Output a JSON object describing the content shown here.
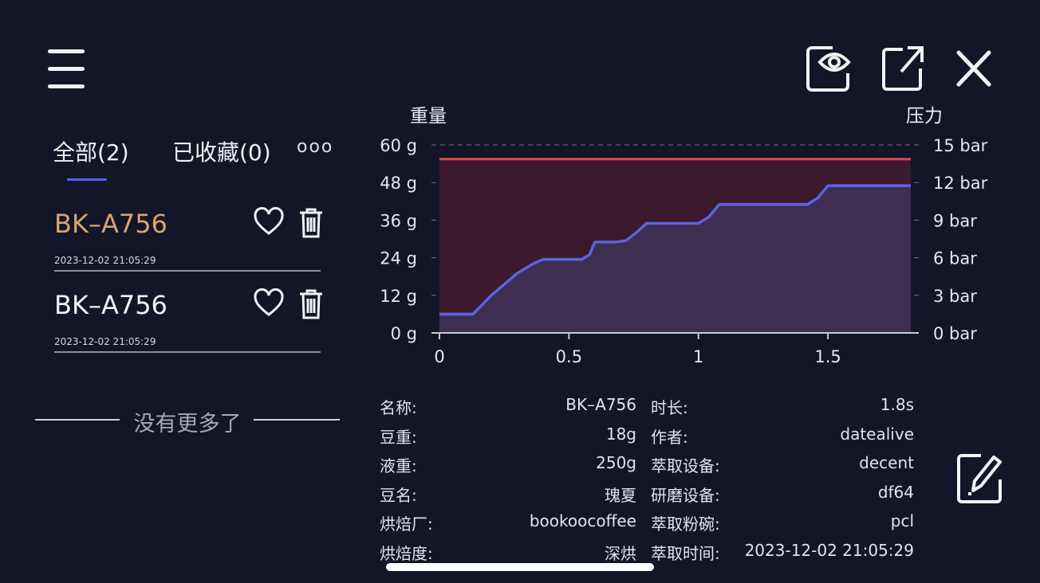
{
  "header": {
    "menu_icon": "menu-icon",
    "actions": [
      "eye-icon",
      "share-icon",
      "close-icon"
    ]
  },
  "tabs": [
    {
      "label": "全部(2)",
      "active": true
    },
    {
      "label": "已收藏(0)",
      "active": false
    }
  ],
  "more_label": "ooo",
  "records": [
    {
      "title": "BK–A756",
      "date": "2023-12-02 21:05:29",
      "highlighted": true,
      "highlight_color": "#d8a56a"
    },
    {
      "title": "BK–A756",
      "date": "2023-12-02 21:05:29",
      "highlighted": false
    }
  ],
  "list_end_text": "没有更多了",
  "chart_data": {
    "type": "area",
    "left_axis_title": "重量",
    "right_axis_title": "压力",
    "x_ticks": [
      "0",
      "0.5",
      "1",
      "1.5"
    ],
    "left_ticks": [
      "60 g",
      "48 g",
      "36 g",
      "24 g",
      "12 g",
      "0 g"
    ],
    "right_ticks": [
      "15 bar",
      "12 bar",
      "9 bar",
      "6 bar",
      "3 bar",
      "0 bar"
    ],
    "xlim": [
      0,
      1.82
    ],
    "ylim_left": [
      0,
      60
    ],
    "ylim_right": [
      0,
      15
    ],
    "grid": "dashed horizontal",
    "series": [
      {
        "color": "#d94a4a",
        "fill": "#3b1a2e",
        "x": [
          0,
          1.82
        ],
        "y": [
          55.5,
          55.5
        ]
      },
      {
        "color": "#5b64e0",
        "fill": "#3f3257",
        "x": [
          0,
          0.13,
          0.2,
          0.3,
          0.36,
          0.4,
          0.5,
          0.55,
          0.58,
          0.6,
          0.68,
          0.72,
          0.76,
          0.8,
          0.95,
          1.0,
          1.04,
          1.08,
          1.3,
          1.42,
          1.46,
          1.5,
          1.82
        ],
        "y": [
          6,
          6,
          12,
          19,
          22,
          23.5,
          23.5,
          23.5,
          25,
          29,
          29,
          29.5,
          32,
          35,
          35,
          35,
          37,
          41,
          41,
          41,
          43,
          47,
          47
        ]
      }
    ]
  },
  "details_left": [
    {
      "label": "名称:",
      "value": "BK–A756"
    },
    {
      "label": "豆重:",
      "value": "18g"
    },
    {
      "label": "液重:",
      "value": "250g"
    },
    {
      "label": "豆名:",
      "value": "瑰夏"
    },
    {
      "label": "烘焙厂:",
      "value": "bookoocoffee"
    },
    {
      "label": "烘焙度:",
      "value": "深烘"
    }
  ],
  "details_right": [
    {
      "label": "时长:",
      "value": "1.8s"
    },
    {
      "label": "作者:",
      "value": "datealive"
    },
    {
      "label": "萃取设备:",
      "value": "decent"
    },
    {
      "label": "研磨设备:",
      "value": "df64"
    },
    {
      "label": "萃取粉碗:",
      "value": "pcl"
    },
    {
      "label": "萃取时间:",
      "value": "2023-12-02 21:05:29"
    }
  ],
  "edit_icon": "edit-icon"
}
